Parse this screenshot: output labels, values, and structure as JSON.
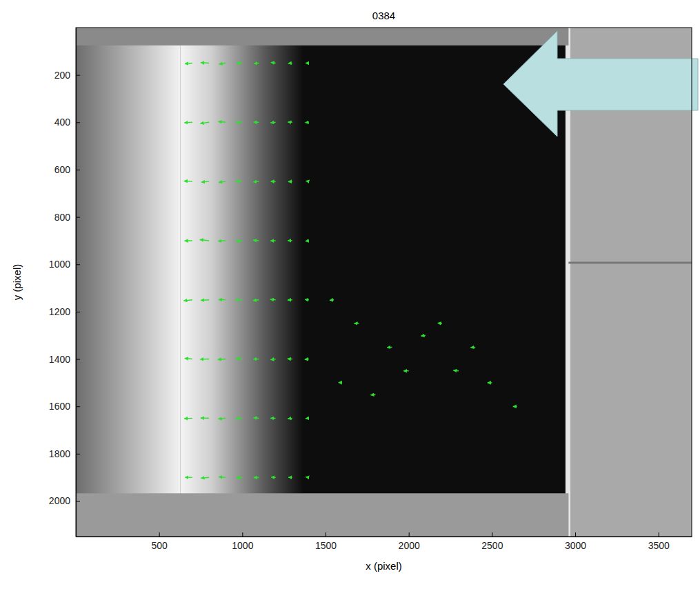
{
  "chart_data": {
    "type": "quiver",
    "title": "0384",
    "x_label": "x (pixel)",
    "y_label": "y (pixel)",
    "xlim": [
      0,
      3700
    ],
    "ylim": [
      0,
      2150
    ],
    "xticks": [
      500,
      1000,
      1500,
      2000,
      2500,
      3000,
      3500
    ],
    "yticks": [
      200,
      400,
      600,
      800,
      1000,
      1200,
      1400,
      1600,
      1800,
      2000
    ],
    "color": "#2ee02e",
    "marker": "arrow",
    "grid": false,
    "x": [
      700,
      800,
      900,
      1000,
      1100,
      1200,
      1300,
      1400,
      700,
      800,
      900,
      1000,
      1100,
      1200,
      1300,
      1400,
      700,
      800,
      900,
      1000,
      1100,
      1200,
      1300,
      1400,
      700,
      800,
      900,
      1000,
      1100,
      1200,
      1300,
      1400,
      700,
      800,
      900,
      1000,
      1100,
      1200,
      1300,
      1400,
      700,
      800,
      900,
      1000,
      1100,
      1200,
      1300,
      1400,
      700,
      800,
      900,
      1000,
      1100,
      1200,
      1300,
      1400,
      700,
      800,
      900,
      1000,
      1100,
      1200,
      1300,
      1400,
      1550,
      1700,
      1900,
      2100,
      2300,
      2500,
      2650,
      1600,
      1800,
      2000,
      2200,
      2400
    ],
    "y": [
      150,
      150,
      150,
      150,
      150,
      150,
      150,
      150,
      400,
      400,
      400,
      400,
      400,
      400,
      400,
      400,
      650,
      650,
      650,
      650,
      650,
      650,
      650,
      650,
      900,
      900,
      900,
      900,
      900,
      900,
      900,
      900,
      1150,
      1150,
      1150,
      1150,
      1150,
      1150,
      1150,
      1150,
      1400,
      1400,
      1400,
      1400,
      1400,
      1400,
      1400,
      1400,
      1650,
      1650,
      1650,
      1650,
      1650,
      1650,
      1650,
      1650,
      1900,
      1900,
      1900,
      1900,
      1900,
      1900,
      1900,
      1900,
      1150,
      1250,
      1350,
      1300,
      1450,
      1500,
      1600,
      1500,
      1550,
      1450,
      1250,
      1350
    ],
    "u": [
      -45,
      -50,
      -40,
      -35,
      -30,
      -28,
      -25,
      -20,
      -48,
      -52,
      -44,
      -38,
      -33,
      -30,
      -26,
      -22,
      -50,
      -46,
      -42,
      -40,
      -34,
      -29,
      -24,
      -18,
      -47,
      -55,
      -45,
      -37,
      -35,
      -31,
      -27,
      -21,
      -52,
      -49,
      -43,
      -41,
      -36,
      -32,
      -28,
      -24,
      -46,
      -53,
      -47,
      -39,
      -34,
      -30,
      -29,
      -25,
      -49,
      -50,
      -44,
      -38,
      -33,
      -31,
      -26,
      -20,
      -44,
      -48,
      -41,
      -36,
      -32,
      -27,
      -23,
      -19,
      -25,
      -28,
      -30,
      -26,
      -32,
      -27,
      -24,
      -22,
      -29,
      -31,
      -26,
      -28
    ],
    "v": [
      3,
      -2,
      4,
      0,
      2,
      -3,
      1,
      0,
      2,
      5,
      -3,
      1,
      0,
      2,
      -1,
      1,
      -2,
      3,
      4,
      -1,
      2,
      0,
      1,
      -2,
      1,
      -4,
      2,
      3,
      -2,
      1,
      0,
      2,
      4,
      2,
      -1,
      0,
      3,
      -2,
      1,
      -1,
      -3,
      1,
      2,
      -2,
      0,
      3,
      -1,
      2,
      2,
      -1,
      3,
      1,
      -2,
      0,
      2,
      1,
      0,
      3,
      -2,
      2,
      1,
      -1,
      0,
      -2,
      2,
      -1,
      1,
      3,
      -2,
      0,
      1,
      -1,
      2,
      0,
      -2,
      1
    ]
  }
}
